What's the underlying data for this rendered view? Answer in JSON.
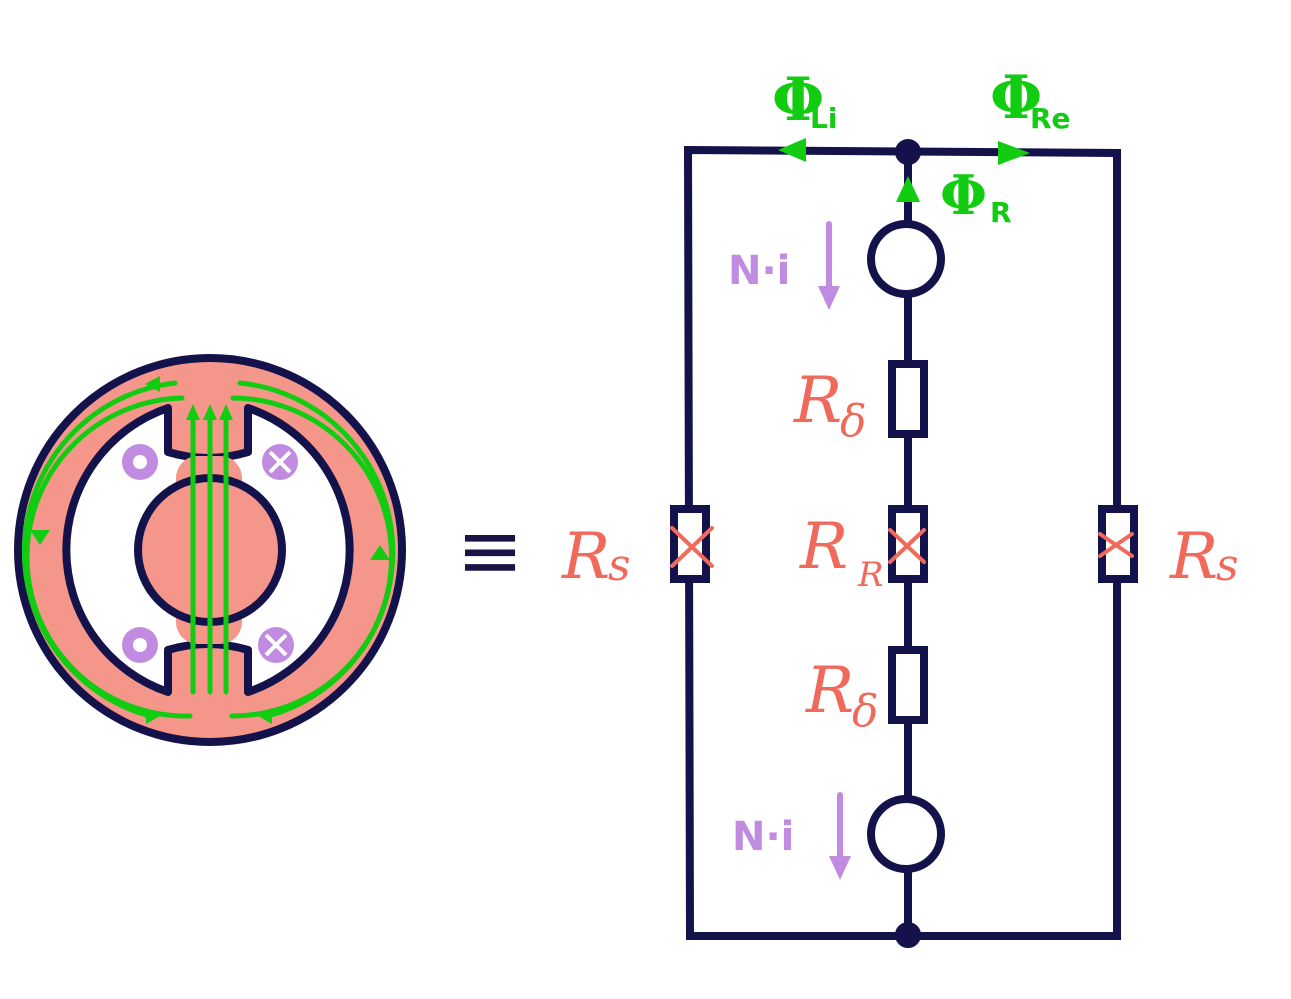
{
  "colors": {
    "wire": "#14124a",
    "iron": "#f5968a",
    "flux": "#11cc11",
    "reluctance": "#f06a5c",
    "mmf": "#c08be0"
  },
  "equivalence_symbol": "≡",
  "flux_labels": {
    "left": {
      "symbol": "Φ",
      "sub": "Li"
    },
    "right": {
      "symbol": "Φ",
      "sub": "Re"
    },
    "center": {
      "symbol": "Φ",
      "sub": "R"
    }
  },
  "mmf_labels": {
    "top": "N·i",
    "bottom": "N·i"
  },
  "reluctance_labels": {
    "left_stator": {
      "symbol": "R",
      "sub": "s"
    },
    "right_stator": {
      "symbol": "R",
      "sub": "s"
    },
    "gap_top": {
      "symbol": "R",
      "sub": "δ"
    },
    "rotor": {
      "symbol": "R",
      "sub": "R"
    },
    "gap_bottom": {
      "symbol": "R",
      "sub": "δ"
    }
  },
  "icons": {
    "coil_out": "dot-in-circle-icon",
    "coil_in": "cross-in-circle-icon"
  }
}
